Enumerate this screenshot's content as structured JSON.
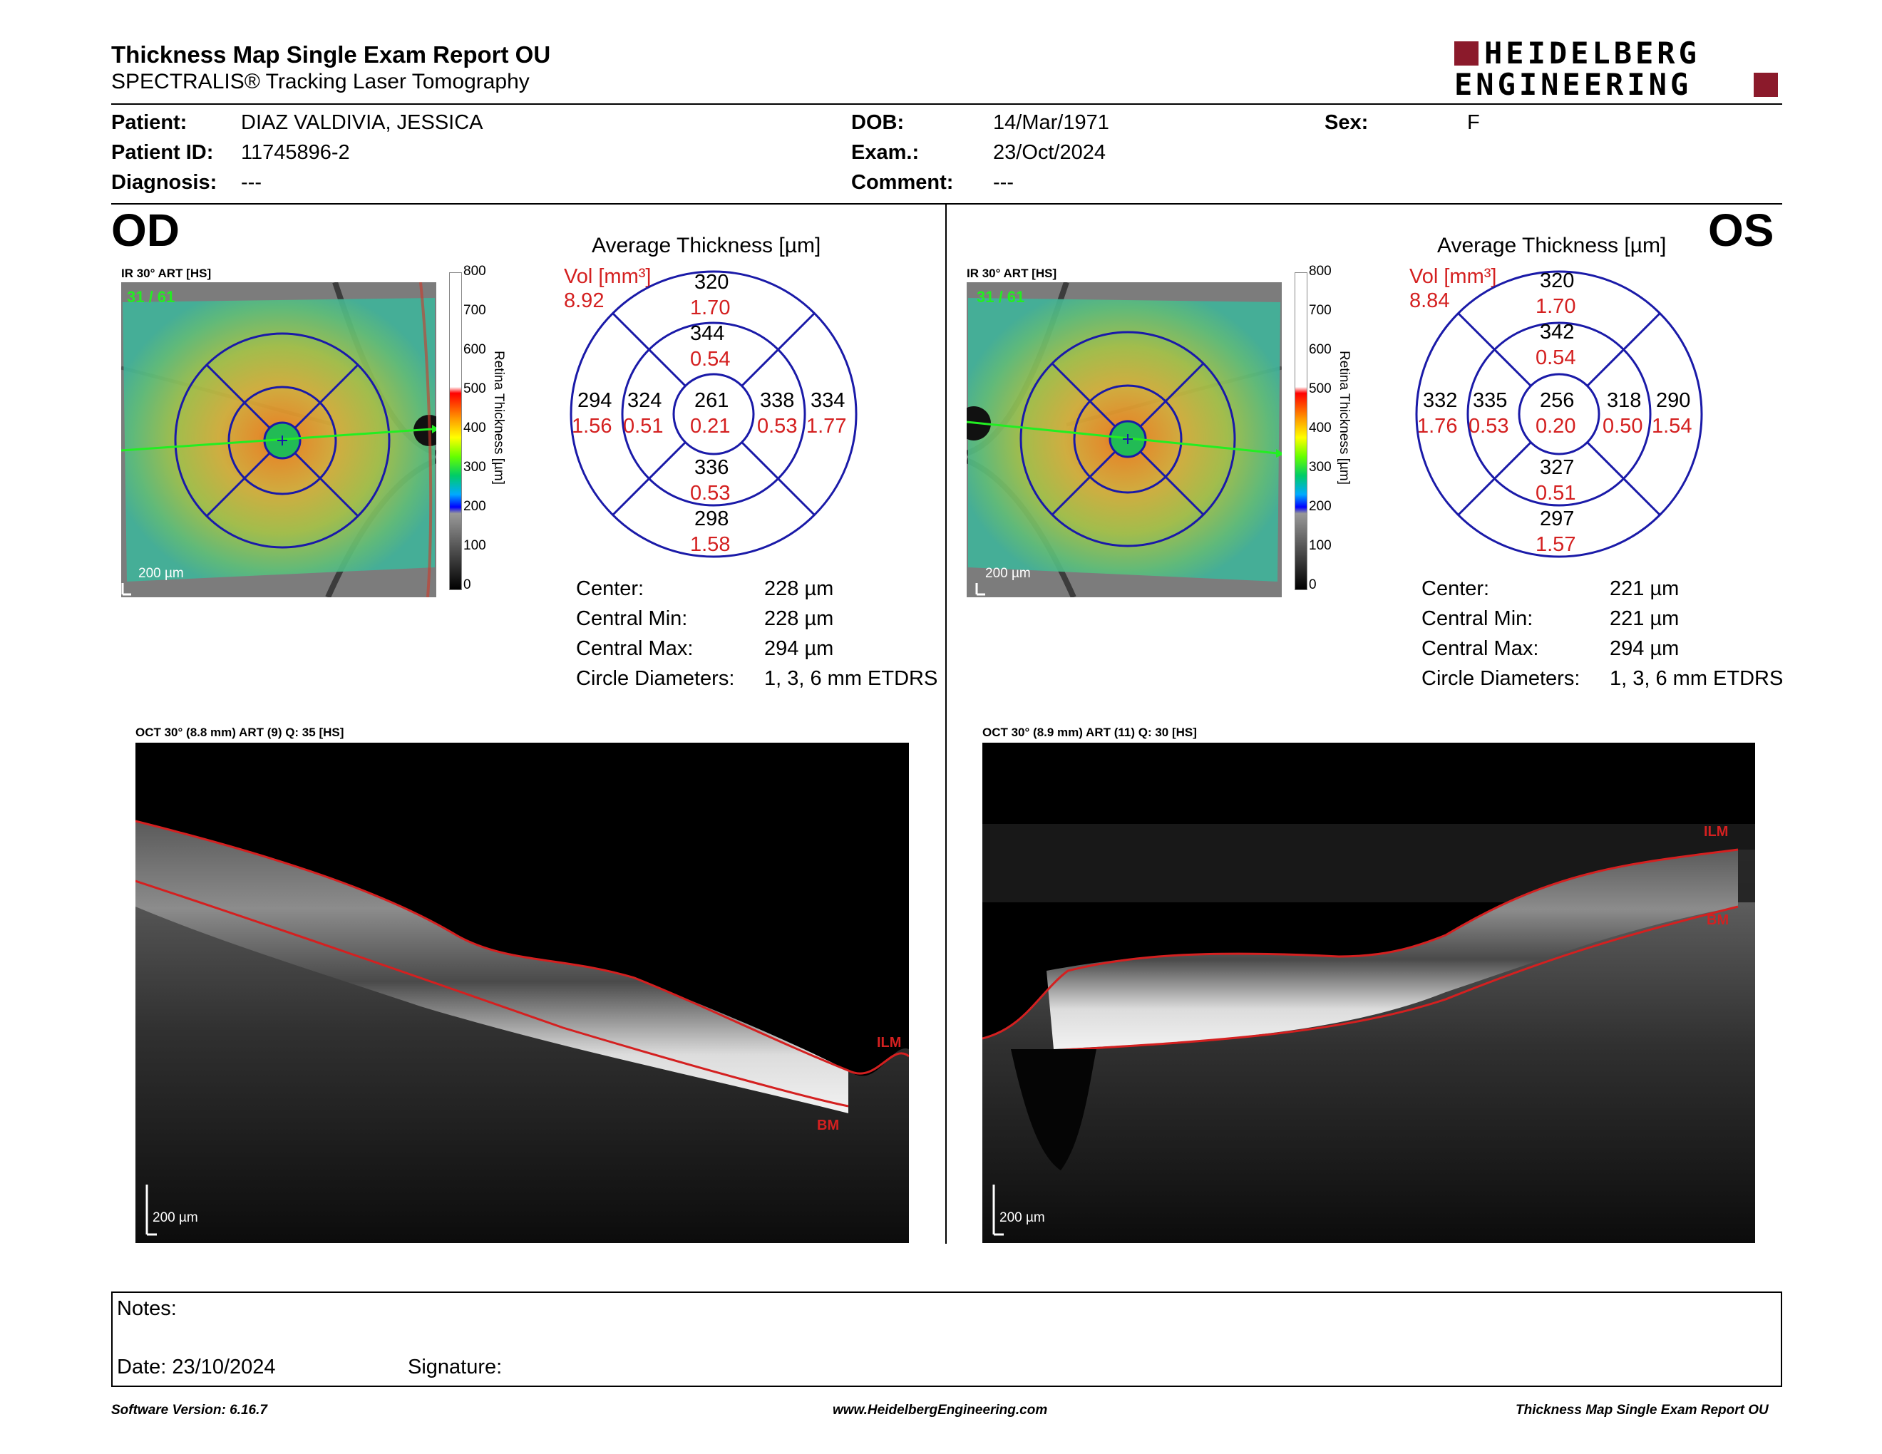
{
  "header": {
    "title": "Thickness Map Single Exam Report OU",
    "subtitle": "SPECTRALIS® Tracking Laser Tomography",
    "logo_line1": "HEIDELBERG",
    "logo_line2": "ENGINEERING",
    "logo_color": "#8B1A2B"
  },
  "patient": {
    "patient_label": "Patient:",
    "patient_value": "DIAZ VALDIVIA, JESSICA",
    "id_label": "Patient ID:",
    "id_value": "11745896-2",
    "diagnosis_label": "Diagnosis:",
    "diagnosis_value": "---",
    "dob_label": "DOB:",
    "dob_value": "14/Mar/1971",
    "exam_label": "Exam.:",
    "exam_value": "23/Oct/2024",
    "comment_label": "Comment:",
    "comment_value": "---",
    "sex_label": "Sex:",
    "sex_value": "F"
  },
  "scale": {
    "ticks": [
      "800",
      "700",
      "600",
      "500",
      "400",
      "300",
      "200",
      "100",
      "0"
    ],
    "label": "Retina Thickness [µm]"
  },
  "od": {
    "eye": "OD",
    "ir_label": "IR 30° ART [HS]",
    "frame": "31 / 61",
    "scalebar": "200 µm",
    "avg_title": "Average Thickness [µm]",
    "vol_label": "Vol [mm³]",
    "vol_value": "8.92",
    "grid": {
      "center": {
        "t": "261",
        "v": "0.21"
      },
      "inner_top": {
        "t": "344",
        "v": "0.54"
      },
      "inner_bottom": {
        "t": "336",
        "v": "0.53"
      },
      "inner_left": {
        "t": "324",
        "v": "0.51"
      },
      "inner_right": {
        "t": "338",
        "v": "0.53"
      },
      "outer_top": {
        "t": "320",
        "v": "1.70"
      },
      "outer_bottom": {
        "t": "298",
        "v": "1.58"
      },
      "outer_left": {
        "t": "294",
        "v": "1.56"
      },
      "outer_right": {
        "t": "334",
        "v": "1.77"
      }
    },
    "stats": [
      {
        "label": "Center:",
        "value": "228 µm"
      },
      {
        "label": "Central Min:",
        "value": "228 µm"
      },
      {
        "label": "Central Max:",
        "value": "294 µm"
      },
      {
        "label": "Circle Diameters:",
        "value": "1, 3, 6 mm ETDRS"
      }
    ],
    "oct_label": "OCT 30° (8.8 mm) ART (9) Q: 35 [HS]",
    "oct_scalebar": "200 µm",
    "ilm": "ILM",
    "bm": "BM"
  },
  "os": {
    "eye": "OS",
    "ir_label": "IR 30° ART [HS]",
    "frame": "31 / 61",
    "scalebar": "200 µm",
    "avg_title": "Average Thickness [µm]",
    "vol_label": "Vol [mm³]",
    "vol_value": "8.84",
    "grid": {
      "center": {
        "t": "256",
        "v": "0.20"
      },
      "inner_top": {
        "t": "342",
        "v": "0.54"
      },
      "inner_bottom": {
        "t": "327",
        "v": "0.51"
      },
      "inner_left": {
        "t": "335",
        "v": "0.53"
      },
      "inner_right": {
        "t": "318",
        "v": "0.50"
      },
      "outer_top": {
        "t": "320",
        "v": "1.70"
      },
      "outer_bottom": {
        "t": "297",
        "v": "1.57"
      },
      "outer_left": {
        "t": "332",
        "v": "1.76"
      },
      "outer_right": {
        "t": "290",
        "v": "1.54"
      }
    },
    "stats": [
      {
        "label": "Center:",
        "value": "221 µm"
      },
      {
        "label": "Central Min:",
        "value": "221 µm"
      },
      {
        "label": "Central Max:",
        "value": "294 µm"
      },
      {
        "label": "Circle Diameters:",
        "value": "1, 3, 6 mm ETDRS"
      }
    ],
    "oct_label": "OCT 30° (8.9 mm) ART (11) Q: 30 [HS]",
    "oct_scalebar": "200 µm",
    "ilm": "ILM",
    "bm": "BM"
  },
  "notes": {
    "notes_label": "Notes:",
    "date_label": "Date: 23/10/2024",
    "signature_label": "Signature:"
  },
  "footer": {
    "software": "Software Version: 6.16.7",
    "website": "www.HeidelbergEngineering.com",
    "report": "Thickness Map Single Exam Report OU"
  },
  "colors": {
    "segment_blue": "#1a1aa8",
    "volume_red": "#d42020",
    "scan_green": "#22ee22"
  }
}
